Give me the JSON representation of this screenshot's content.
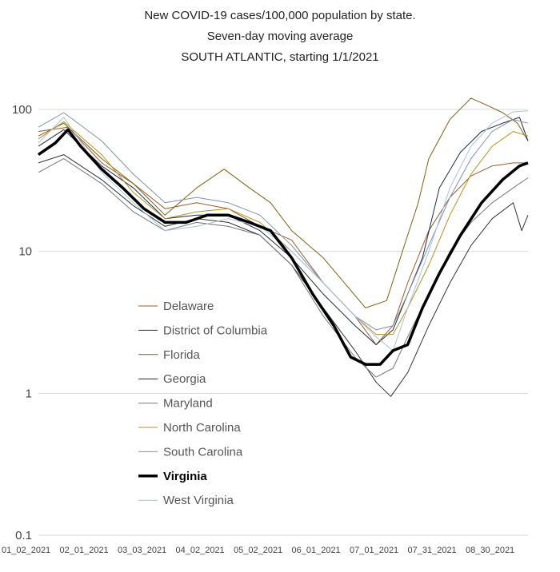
{
  "chart_data": {
    "type": "line",
    "title": [
      "New COVID-19 cases/100,000 population by state.",
      "Seven-day moving average",
      "SOUTH ATLANTIC, starting 1/1/2021"
    ],
    "yscale": "log",
    "ylim": [
      0.1,
      100
    ],
    "yticks": [
      {
        "v": 0.1,
        "label": "0.1"
      },
      {
        "v": 1,
        "label": "1"
      },
      {
        "v": 10,
        "label": "10"
      },
      {
        "v": 100,
        "label": "100"
      }
    ],
    "xticks": [
      "01_02_2021",
      "02_01_2021",
      "03_03_2021",
      "04_02_2021",
      "05_02_2021",
      "06_01_2021",
      "07_01_2021",
      "07_31_2021",
      "08_30_2021"
    ],
    "grid": true,
    "legend_position": "bottom-left inside plot",
    "series": [
      {
        "name": "Delaware",
        "color": "#9c5a2a",
        "width": 1,
        "points": [
          [
            0,
            70
          ],
          [
            14,
            75
          ],
          [
            30,
            42
          ],
          [
            45,
            30
          ],
          [
            60,
            20
          ],
          [
            75,
            22
          ],
          [
            90,
            20
          ],
          [
            105,
            15
          ],
          [
            120,
            12
          ],
          [
            135,
            6
          ],
          [
            150,
            3.5
          ],
          [
            160,
            2.2
          ],
          [
            168,
            3
          ],
          [
            175,
            6
          ],
          [
            185,
            14
          ],
          [
            195,
            24
          ],
          [
            205,
            34
          ],
          [
            215,
            40
          ],
          [
            225,
            42
          ],
          [
            232,
            42
          ]
        ]
      },
      {
        "name": "District of Columbia",
        "color": "#333333",
        "width": 1,
        "points": [
          [
            0,
            42
          ],
          [
            12,
            48
          ],
          [
            30,
            32
          ],
          [
            45,
            21
          ],
          [
            60,
            15
          ],
          [
            75,
            17
          ],
          [
            90,
            16
          ],
          [
            105,
            13
          ],
          [
            120,
            8
          ],
          [
            135,
            4
          ],
          [
            150,
            2
          ],
          [
            160,
            1.2
          ],
          [
            167,
            0.95
          ],
          [
            175,
            1.4
          ],
          [
            185,
            3
          ],
          [
            195,
            6
          ],
          [
            205,
            11
          ],
          [
            215,
            17
          ],
          [
            225,
            22
          ],
          [
            229,
            14
          ],
          [
            232,
            18
          ]
        ]
      },
      {
        "name": "Florida",
        "color": "#806010",
        "width": 1,
        "points": [
          [
            0,
            65
          ],
          [
            12,
            80
          ],
          [
            30,
            45
          ],
          [
            45,
            30
          ],
          [
            60,
            18
          ],
          [
            75,
            28
          ],
          [
            88,
            38
          ],
          [
            100,
            28
          ],
          [
            110,
            22
          ],
          [
            120,
            14
          ],
          [
            135,
            9
          ],
          [
            145,
            6
          ],
          [
            155,
            4
          ],
          [
            165,
            4.5
          ],
          [
            175,
            13
          ],
          [
            180,
            22
          ],
          [
            185,
            45
          ],
          [
            195,
            85
          ],
          [
            205,
            120
          ],
          [
            212,
            108
          ],
          [
            220,
            95
          ],
          [
            227,
            80
          ],
          [
            232,
            60
          ]
        ]
      },
      {
        "name": "Georgia",
        "color": "#1f2a44",
        "width": 1,
        "points": [
          [
            0,
            55
          ],
          [
            12,
            72
          ],
          [
            30,
            40
          ],
          [
            45,
            28
          ],
          [
            60,
            17
          ],
          [
            75,
            18
          ],
          [
            90,
            18
          ],
          [
            105,
            14
          ],
          [
            120,
            9
          ],
          [
            135,
            5
          ],
          [
            150,
            3
          ],
          [
            160,
            2.2
          ],
          [
            168,
            2.8
          ],
          [
            175,
            5
          ],
          [
            182,
            9
          ],
          [
            190,
            28
          ],
          [
            200,
            50
          ],
          [
            210,
            70
          ],
          [
            220,
            80
          ],
          [
            228,
            88
          ],
          [
            232,
            60
          ]
        ]
      },
      {
        "name": "Maryland",
        "color": "#777777",
        "width": 1,
        "points": [
          [
            0,
            36
          ],
          [
            12,
            45
          ],
          [
            30,
            30
          ],
          [
            45,
            19
          ],
          [
            60,
            14
          ],
          [
            75,
            16
          ],
          [
            90,
            15
          ],
          [
            105,
            13
          ],
          [
            120,
            8
          ],
          [
            135,
            3.5
          ],
          [
            150,
            1.8
          ],
          [
            160,
            1.3
          ],
          [
            168,
            1.5
          ],
          [
            175,
            2.5
          ],
          [
            185,
            5
          ],
          [
            195,
            10
          ],
          [
            205,
            16
          ],
          [
            215,
            22
          ],
          [
            225,
            28
          ],
          [
            232,
            33
          ]
        ]
      },
      {
        "name": "North Carolina",
        "color": "#b89020",
        "width": 1,
        "points": [
          [
            0,
            62
          ],
          [
            12,
            82
          ],
          [
            30,
            48
          ],
          [
            45,
            26
          ],
          [
            60,
            17
          ],
          [
            75,
            19
          ],
          [
            90,
            20
          ],
          [
            105,
            16
          ],
          [
            120,
            10
          ],
          [
            135,
            6
          ],
          [
            150,
            3.5
          ],
          [
            160,
            2.6
          ],
          [
            168,
            2.6
          ],
          [
            175,
            4
          ],
          [
            185,
            8
          ],
          [
            195,
            18
          ],
          [
            205,
            35
          ],
          [
            215,
            55
          ],
          [
            225,
            70
          ],
          [
            232,
            65
          ]
        ]
      },
      {
        "name": "South Carolina",
        "color": "#8090b0",
        "width": 1,
        "points": [
          [
            0,
            75
          ],
          [
            12,
            95
          ],
          [
            30,
            60
          ],
          [
            45,
            35
          ],
          [
            60,
            22
          ],
          [
            75,
            24
          ],
          [
            90,
            22
          ],
          [
            105,
            18
          ],
          [
            120,
            11
          ],
          [
            135,
            6
          ],
          [
            150,
            3.5
          ],
          [
            160,
            2.8
          ],
          [
            168,
            3
          ],
          [
            175,
            5
          ],
          [
            185,
            11
          ],
          [
            195,
            24
          ],
          [
            205,
            45
          ],
          [
            215,
            70
          ],
          [
            225,
            85
          ],
          [
            232,
            80
          ]
        ]
      },
      {
        "name": "Virginia",
        "color": "#000000",
        "width": 3.5,
        "points": [
          [
            0,
            48
          ],
          [
            8,
            58
          ],
          [
            14,
            72
          ],
          [
            20,
            55
          ],
          [
            30,
            38
          ],
          [
            40,
            28
          ],
          [
            50,
            20
          ],
          [
            60,
            16
          ],
          [
            70,
            16
          ],
          [
            80,
            18
          ],
          [
            90,
            18
          ],
          [
            100,
            16
          ],
          [
            110,
            14
          ],
          [
            120,
            9
          ],
          [
            130,
            5
          ],
          [
            140,
            3
          ],
          [
            148,
            1.8
          ],
          [
            155,
            1.6
          ],
          [
            162,
            1.6
          ],
          [
            168,
            2
          ],
          [
            175,
            2.2
          ],
          [
            182,
            4
          ],
          [
            190,
            7
          ],
          [
            200,
            13
          ],
          [
            210,
            22
          ],
          [
            220,
            32
          ],
          [
            228,
            40
          ],
          [
            232,
            42
          ]
        ]
      },
      {
        "name": "West Virginia",
        "color": "#a8c0d8",
        "width": 1,
        "points": [
          [
            0,
            58
          ],
          [
            12,
            88
          ],
          [
            30,
            36
          ],
          [
            45,
            22
          ],
          [
            60,
            14
          ],
          [
            75,
            15
          ],
          [
            90,
            17
          ],
          [
            105,
            15
          ],
          [
            120,
            10
          ],
          [
            135,
            6
          ],
          [
            150,
            3.5
          ],
          [
            160,
            2.5
          ],
          [
            168,
            2
          ],
          [
            175,
            4
          ],
          [
            185,
            10
          ],
          [
            195,
            28
          ],
          [
            205,
            55
          ],
          [
            215,
            80
          ],
          [
            225,
            96
          ],
          [
            232,
            98
          ]
        ]
      }
    ]
  }
}
